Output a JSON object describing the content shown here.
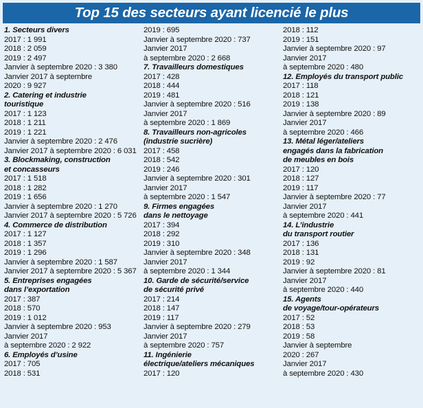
{
  "title": "Top 15 des secteurs ayant licencié le plus",
  "columns": [
    [
      {
        "type": "head",
        "text": "1. Secteurs divers"
      },
      {
        "type": "line",
        "text": "2017 : 1 991"
      },
      {
        "type": "line",
        "text": "2018 : 2 059"
      },
      {
        "type": "line",
        "text": "2019 : 2 497"
      },
      {
        "type": "line",
        "text": "Janvier à septembre 2020 : 3 380"
      },
      {
        "type": "line",
        "text": "Janvier 2017 à septembre"
      },
      {
        "type": "line",
        "text": "2020 : 9 927"
      },
      {
        "type": "head",
        "text": "2. Catering et industrie"
      },
      {
        "type": "head",
        "text": "touristique"
      },
      {
        "type": "line",
        "text": "2017 : 1 123"
      },
      {
        "type": "line",
        "text": "2018 : 1 211"
      },
      {
        "type": "line",
        "text": "2019 : 1 221"
      },
      {
        "type": "line",
        "text": "Janvier à septembre 2020 : 2 476"
      },
      {
        "type": "line",
        "text": "Janvier 2017 à septembre 2020 : 6 031"
      },
      {
        "type": "head",
        "text": "3. Blockmaking, construction"
      },
      {
        "type": "head",
        "text": "et concasseurs"
      },
      {
        "type": "line",
        "text": "2017 : 1 518"
      },
      {
        "type": "line",
        "text": "2018 : 1 282"
      },
      {
        "type": "line",
        "text": "2019 : 1 656"
      },
      {
        "type": "line",
        "text": "Janvier à septembre 2020 : 1 270"
      },
      {
        "type": "line",
        "text": "Janvier 2017 à septembre 2020 : 5 726"
      },
      {
        "type": "head",
        "text": "4. Commerce de distribution"
      },
      {
        "type": "line",
        "text": "2017 : 1 127"
      },
      {
        "type": "line",
        "text": "2018 : 1 357"
      },
      {
        "type": "line",
        "text": "2019 : 1 296"
      },
      {
        "type": "line",
        "text": "Janvier à septembre 2020 : 1 587"
      },
      {
        "type": "line",
        "text": "Janvier 2017 à septembre 2020 : 5 367"
      },
      {
        "type": "head",
        "text": "5. Entreprises engagées"
      },
      {
        "type": "head",
        "text": "dans l’exportation"
      },
      {
        "type": "line",
        "text": "2017 : 387"
      },
      {
        "type": "line",
        "text": "2018 : 570"
      },
      {
        "type": "line",
        "text": "2019 : 1 012"
      },
      {
        "type": "line",
        "text": "Janvier à septembre 2020 : 953"
      },
      {
        "type": "line",
        "text": "Janvier 2017"
      },
      {
        "type": "line",
        "text": "à septembre 2020 : 2 922"
      },
      {
        "type": "head",
        "text": "6. Employés d’usine"
      },
      {
        "type": "line",
        "text": "2017 : 705"
      },
      {
        "type": "line",
        "text": "2018 : 531"
      }
    ],
    [
      {
        "type": "line",
        "text": "2019 : 695"
      },
      {
        "type": "line",
        "text": "Janvier à septembre 2020 : 737"
      },
      {
        "type": "line",
        "text": "Janvier 2017"
      },
      {
        "type": "line",
        "text": "à septembre 2020 : 2 668"
      },
      {
        "type": "head",
        "text": "7. Travailleurs domestiques"
      },
      {
        "type": "line",
        "text": "2017 : 428"
      },
      {
        "type": "line",
        "text": "2018 : 444"
      },
      {
        "type": "line",
        "text": "2019 : 481"
      },
      {
        "type": "line",
        "text": "Janvier à septembre 2020 : 516"
      },
      {
        "type": "line",
        "text": "Janvier 2017"
      },
      {
        "type": "line",
        "text": "à septembre 2020 : 1 869"
      },
      {
        "type": "head",
        "text": "8. Travailleurs non-agricoles"
      },
      {
        "type": "head",
        "text": "(industrie sucrière)"
      },
      {
        "type": "line",
        "text": "2017 : 458"
      },
      {
        "type": "line",
        "text": "2018 : 542"
      },
      {
        "type": "line",
        "text": "2019 : 246"
      },
      {
        "type": "line",
        "text": "Janvier à septembre 2020 : 301"
      },
      {
        "type": "line",
        "text": "Janvier 2017"
      },
      {
        "type": "line",
        "text": "à septembre 2020 : 1 547"
      },
      {
        "type": "head",
        "text": "9. Firmes engagées"
      },
      {
        "type": "head",
        "text": "dans le nettoyage"
      },
      {
        "type": "line",
        "text": "2017 : 394"
      },
      {
        "type": "line",
        "text": "2018 : 292"
      },
      {
        "type": "line",
        "text": "2019 : 310"
      },
      {
        "type": "line",
        "text": "Janvier à septembre 2020 : 348"
      },
      {
        "type": "line",
        "text": "Janvier 2017"
      },
      {
        "type": "line",
        "text": "à septembre 2020 : 1 344"
      },
      {
        "type": "head",
        "text": "10. Garde de sécurité/service"
      },
      {
        "type": "head",
        "text": "de sécurité privé"
      },
      {
        "type": "line",
        "text": "2017 : 214"
      },
      {
        "type": "line",
        "text": "2018 : 147"
      },
      {
        "type": "line",
        "text": "2019 : 117"
      },
      {
        "type": "line",
        "text": "Janvier à septembre 2020 : 279"
      },
      {
        "type": "line",
        "text": "Janvier 2017"
      },
      {
        "type": "line",
        "text": "à septembre 2020 : 757"
      },
      {
        "type": "head",
        "text": "11. Ingénierie"
      },
      {
        "type": "head",
        "text": "électrique/ateliers mécaniques"
      },
      {
        "type": "line",
        "text": "2017 : 120"
      }
    ],
    [
      {
        "type": "line",
        "text": "2018 : 112"
      },
      {
        "type": "line",
        "text": "2019 : 151"
      },
      {
        "type": "line",
        "text": "Janvier à septembre 2020 : 97"
      },
      {
        "type": "line",
        "text": "Janvier 2017"
      },
      {
        "type": "line",
        "text": "à septembre 2020 : 480"
      },
      {
        "type": "head",
        "text": "12. Employés du transport public"
      },
      {
        "type": "line",
        "text": "2017 : 118"
      },
      {
        "type": "line",
        "text": "2018 : 121"
      },
      {
        "type": "line",
        "text": "2019 : 138"
      },
      {
        "type": "line",
        "text": "Janvier à septembre 2020 : 89"
      },
      {
        "type": "line",
        "text": "Janvier 2017"
      },
      {
        "type": "line",
        "text": "à septembre 2020 : 466"
      },
      {
        "type": "head",
        "text": "13. Métal léger/ateliers"
      },
      {
        "type": "head",
        "text": "engagés dans la fabrication"
      },
      {
        "type": "head",
        "text": "de meubles en bois"
      },
      {
        "type": "line",
        "text": "2017 : 120"
      },
      {
        "type": "line",
        "text": "2018 : 127"
      },
      {
        "type": "line",
        "text": "2019 : 117"
      },
      {
        "type": "line",
        "text": "Janvier à septembre 2020 : 77"
      },
      {
        "type": "line",
        "text": "Janvier 2017"
      },
      {
        "type": "line",
        "text": "à septembre 2020 : 441"
      },
      {
        "type": "head",
        "text": "14. L’industrie"
      },
      {
        "type": "head",
        "text": "du transport routier"
      },
      {
        "type": "line",
        "text": "2017 : 136"
      },
      {
        "type": "line",
        "text": "2018 : 131"
      },
      {
        "type": "line",
        "text": "2019 : 92"
      },
      {
        "type": "line",
        "text": "Janvier à septembre 2020 : 81"
      },
      {
        "type": "line",
        "text": "Janvier 2017"
      },
      {
        "type": "line",
        "text": "à septembre 2020 : 440"
      },
      {
        "type": "head",
        "text": "15. Agents"
      },
      {
        "type": "head",
        "text": "de voyage/tour-opérateurs"
      },
      {
        "type": "line",
        "text": "2017 : 52"
      },
      {
        "type": "line",
        "text": "2018 : 53"
      },
      {
        "type": "line",
        "text": "2019 : 58"
      },
      {
        "type": "line",
        "text": "Janvier à septembre"
      },
      {
        "type": "line",
        "text": "2020 : 267"
      },
      {
        "type": "line",
        "text": "Janvier 2017"
      },
      {
        "type": "line",
        "text": "à septembre 2020 : 430"
      }
    ]
  ]
}
